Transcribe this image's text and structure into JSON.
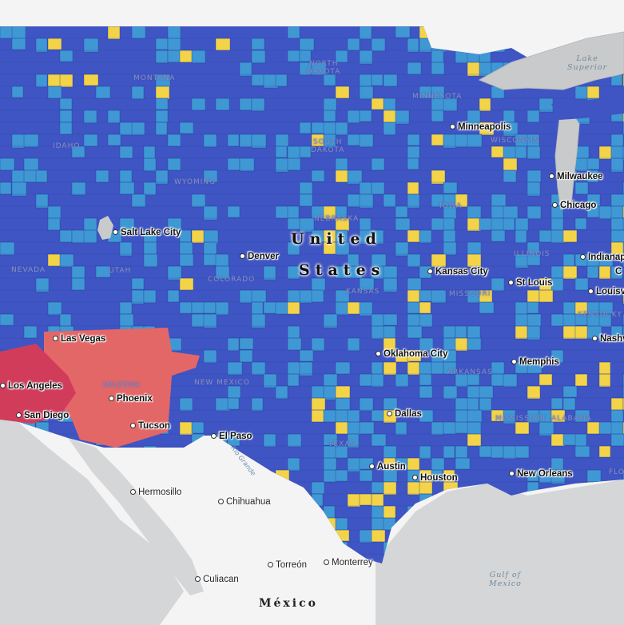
{
  "map": {
    "colors": {
      "dark_blue": "#3f55c4",
      "light_blue": "#3f98d4",
      "yellow": "#f3d448",
      "coral": "#e46767",
      "crimson": "#d13c5b",
      "land": "#f4f4f4",
      "water": "#d5d6d7",
      "lake": "#c9cacb"
    },
    "country_labels": {
      "us_line1": "United",
      "us_line2": "States",
      "mexico": "México"
    },
    "water_labels": {
      "lake_superior_1": "Lake",
      "lake_superior_2": "Superior",
      "gulf_1": "Gulf of",
      "gulf_2": "Mexico",
      "rio_grande": "Rio Grande"
    },
    "states": {
      "montana": "MONTANA",
      "north_dakota_1": "NORTH",
      "north_dakota_2": "DAKOTA",
      "minnesota": "MINNESOTA",
      "idaho": "IDAHO",
      "south_dakota_1": "SOUTH",
      "south_dakota_2": "DAKOTA",
      "wisconsin": "WISCONSIN",
      "wyoming": "WYOMING",
      "nebraska": "NEBRASKA",
      "iowa": "IOWA",
      "illinois": "ILLINOIS",
      "nevada": "NEVADA",
      "utah": "UTAH",
      "colorado": "COLORADO",
      "kansas": "KANSAS",
      "missouri": "MISSOURI",
      "kentucky": "KENTUCKY",
      "arizona": "ARIZONA",
      "new_mexico": "NEW MEXICO",
      "arkansas": "ARKANSAS",
      "mississippi": "MISSISSIPPI",
      "alabama": "ALABAMA",
      "texas": "TEXAS",
      "florida": "FLO"
    },
    "cities": {
      "minneapolis": "Minneapolis",
      "milwaukee": "Milwaukee",
      "chicago": "Chicago",
      "indianapolis": "Indianap",
      "salt_lake_city": "Salt Lake City",
      "denver": "Denver",
      "kansas_city": "Kansas City",
      "st_louis": "St Louis",
      "louisville": "Louisvi",
      "las_vegas": "Las Vegas",
      "nashville": "Nashville",
      "oklahoma_city": "Oklahoma City",
      "memphis": "Memphis",
      "los_angeles": "Los Angeles",
      "phoenix": "Phoenix",
      "san_diego": "San Diego",
      "tucson": "Tucson",
      "el_paso": "El Paso",
      "dallas": "Dallas",
      "austin": "Austin",
      "houston": "Houston",
      "new_orleans": "New Orleans",
      "hermosillo": "Hermosillo",
      "chihuahua": "Chihuahua",
      "torreon": "Torreón",
      "monterrey": "Monterrey",
      "culiacan": "Culiacan",
      "c_edge": "C"
    }
  }
}
